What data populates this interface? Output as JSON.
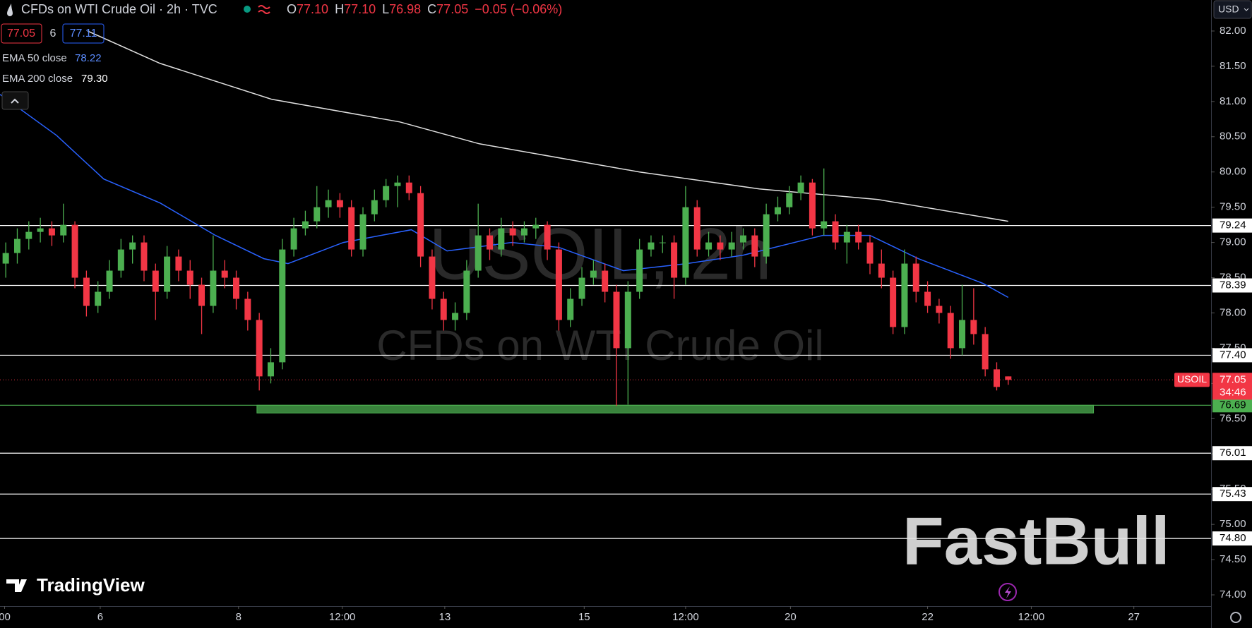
{
  "chart_data": {
    "type": "candlestick",
    "title": "CFDs on WTI Crude Oil · 2h · TVC",
    "ohlc_legend": [
      {
        "key": "O",
        "value": "77.10"
      },
      {
        "key": "H",
        "value": "77.10"
      },
      {
        "key": "L",
        "value": "76.98"
      },
      {
        "key": "C",
        "value": "77.05"
      }
    ],
    "change": "−0.05 (−0.06%)",
    "bid": "77.05",
    "spread": "6",
    "ask": "77.11",
    "currency": "USD",
    "watermark": [
      "USOIL, 2h",
      "CFDs on WTI Crude Oil"
    ],
    "brand": "FastBull",
    "platform": "TradingView",
    "up_color": "#4caf50",
    "down_color": "#f23645",
    "xlim": [
      -0.5,
      104.6
    ],
    "ylim": [
      73.84,
      82.44
    ],
    "xticks": [
      {
        "value": -0.1,
        "label": "00"
      },
      {
        "value": 8.2,
        "label": "6"
      },
      {
        "value": 20.2,
        "label": "8"
      },
      {
        "value": 29.2,
        "label": "12:00"
      },
      {
        "value": 38.1,
        "label": "13"
      },
      {
        "value": 50.2,
        "label": "15"
      },
      {
        "value": 59.0,
        "label": "12:00"
      },
      {
        "value": 68.1,
        "label": "20"
      },
      {
        "value": 80.0,
        "label": "22"
      },
      {
        "value": 89.0,
        "label": "12:00"
      },
      {
        "value": 97.9,
        "label": "27"
      }
    ],
    "yticks": [
      {
        "value": 82,
        "label": "82.00"
      },
      {
        "value": 81.5,
        "label": "81.50"
      },
      {
        "value": 81,
        "label": "81.00"
      },
      {
        "value": 80.5,
        "label": "80.50"
      },
      {
        "value": 80,
        "label": "80.00"
      },
      {
        "value": 79.5,
        "label": "79.50"
      },
      {
        "value": 79,
        "label": "79.00"
      },
      {
        "value": 78.5,
        "label": "78.50"
      },
      {
        "value": 78,
        "label": "78.00"
      },
      {
        "value": 77.5,
        "label": "77.50"
      },
      {
        "value": 77,
        "label": "77.00"
      },
      {
        "value": 76.5,
        "label": "76.50"
      },
      {
        "value": 76,
        "label": "76.00"
      },
      {
        "value": 75.5,
        "label": "75.50"
      },
      {
        "value": 75,
        "label": "75.00"
      },
      {
        "value": 74.5,
        "label": "74.50"
      },
      {
        "value": 74,
        "label": "74.00"
      }
    ],
    "levels": [
      {
        "value": 79.24,
        "label": "79.24",
        "color": "#ffffff"
      },
      {
        "value": 78.39,
        "label": "78.39",
        "color": "#ffffff"
      },
      {
        "value": 77.4,
        "label": "77.40",
        "color": "#ffffff"
      },
      {
        "value": 76.69,
        "label": "76.69",
        "color": "#4caf50"
      },
      {
        "value": 76.01,
        "label": "76.01",
        "color": "#ffffff"
      },
      {
        "value": 75.43,
        "label": "75.43",
        "color": "#ffffff"
      },
      {
        "value": 74.8,
        "label": "74.80",
        "color": "#ffffff"
      }
    ],
    "support_zone": {
      "xlim": [
        21.8,
        94.4
      ],
      "ylim": [
        76.58,
        76.69
      ],
      "color": "#4caf50"
    },
    "last_price": {
      "name": "USOIL",
      "value": 77.05,
      "label": "77.05",
      "countdown": "34:46",
      "color": "#f23645"
    },
    "candles": {
      "open": [
        78.7,
        78.85,
        79.05,
        79.15,
        79.2,
        79.1,
        79.25,
        78.5,
        78.1,
        78.3,
        78.6,
        78.9,
        79.0,
        78.6,
        78.3,
        78.8,
        78.6,
        78.4,
        78.1,
        78.6,
        78.5,
        78.2,
        77.9,
        77.1,
        77.3,
        78.9,
        79.2,
        79.3,
        79.5,
        79.6,
        79.5,
        78.9,
        79.4,
        79.6,
        79.8,
        79.85,
        79.7,
        78.8,
        78.2,
        77.9,
        78.0,
        78.6,
        79.1,
        78.9,
        79.2,
        79.1,
        79.2,
        79.25,
        78.9,
        77.9,
        78.2,
        78.5,
        78.6,
        78.3,
        77.5,
        78.3,
        78.9,
        79.0,
        79.0,
        78.5,
        79.5,
        78.9,
        79.0,
        78.9,
        79.0,
        79.1,
        78.8,
        79.4,
        79.5,
        79.7,
        79.85,
        79.2,
        79.3,
        79.0,
        79.15,
        79.0,
        78.7,
        78.5,
        77.8,
        78.7,
        78.3,
        78.1,
        78.0,
        77.5,
        77.9,
        77.7,
        77.2,
        77.1
      ],
      "high": [
        79.0,
        79.2,
        79.3,
        79.35,
        79.3,
        79.55,
        79.3,
        78.6,
        78.45,
        78.75,
        79.05,
        79.1,
        79.1,
        78.7,
        78.95,
        78.9,
        78.75,
        78.5,
        79.1,
        78.75,
        78.6,
        78.3,
        78.0,
        77.5,
        79.05,
        79.35,
        79.45,
        79.8,
        79.75,
        79.7,
        79.6,
        79.5,
        79.75,
        79.9,
        79.95,
        79.95,
        79.8,
        78.9,
        78.3,
        78.15,
        78.75,
        79.55,
        79.2,
        79.35,
        79.3,
        79.3,
        79.35,
        79.3,
        79.0,
        78.35,
        78.65,
        78.75,
        78.7,
        78.4,
        78.45,
        79.05,
        79.1,
        79.1,
        79.1,
        79.8,
        79.6,
        79.15,
        79.1,
        79.15,
        79.2,
        79.2,
        79.55,
        79.65,
        79.8,
        79.95,
        79.9,
        80.05,
        79.4,
        79.25,
        79.25,
        79.1,
        78.9,
        78.6,
        78.9,
        78.8,
        78.45,
        78.2,
        78.1,
        78.4,
        78.35,
        77.8,
        77.3,
        77.1
      ],
      "low": [
        78.5,
        78.7,
        78.9,
        79.0,
        78.95,
        79.0,
        78.35,
        77.95,
        78.0,
        78.2,
        78.5,
        78.7,
        78.45,
        77.9,
        78.2,
        78.45,
        78.2,
        77.7,
        78.0,
        78.35,
        78.05,
        77.75,
        76.9,
        77.0,
        77.2,
        78.8,
        79.1,
        79.2,
        79.35,
        79.35,
        78.8,
        78.8,
        79.3,
        79.5,
        79.5,
        79.6,
        78.65,
        78.05,
        77.75,
        77.75,
        77.9,
        78.5,
        78.75,
        78.8,
        78.95,
        79.0,
        79.05,
        78.75,
        77.75,
        77.8,
        78.1,
        78.4,
        78.15,
        76.68,
        76.7,
        78.2,
        78.8,
        78.85,
        78.2,
        78.4,
        78.8,
        78.8,
        78.75,
        78.8,
        78.9,
        78.65,
        78.7,
        79.3,
        79.4,
        79.6,
        79.1,
        79.1,
        78.9,
        78.7,
        78.9,
        78.55,
        78.35,
        77.7,
        77.7,
        78.15,
        78.0,
        77.85,
        77.35,
        77.4,
        77.55,
        77.1,
        76.9,
        76.98
      ],
      "close": [
        78.85,
        79.05,
        79.15,
        79.2,
        79.1,
        79.25,
        78.5,
        78.1,
        78.3,
        78.6,
        78.9,
        79.0,
        78.6,
        78.3,
        78.8,
        78.6,
        78.4,
        78.1,
        78.6,
        78.5,
        78.2,
        77.9,
        77.1,
        77.3,
        78.9,
        79.2,
        79.3,
        79.5,
        79.6,
        79.5,
        78.9,
        79.4,
        79.6,
        79.8,
        79.85,
        79.7,
        78.8,
        78.2,
        77.9,
        78.0,
        78.6,
        79.1,
        78.9,
        79.2,
        79.1,
        79.2,
        79.25,
        78.9,
        77.9,
        78.2,
        78.5,
        78.6,
        78.3,
        77.5,
        78.3,
        78.9,
        79.0,
        79.0,
        78.5,
        79.5,
        78.9,
        79.0,
        78.9,
        79.0,
        79.1,
        78.8,
        79.4,
        79.5,
        79.7,
        79.85,
        79.2,
        79.3,
        79.0,
        79.15,
        79.0,
        78.7,
        78.5,
        77.8,
        78.7,
        78.3,
        78.1,
        78.0,
        77.5,
        77.9,
        77.7,
        77.2,
        76.95,
        77.05
      ]
    },
    "series": [
      {
        "name": "EMA 50 close",
        "last_label": "78.22",
        "color": "#2962ff",
        "x": [
          -0.5,
          4.4,
          8.5,
          13.4,
          18.2,
          22.4,
          24.5,
          29.3,
          35.2,
          38.3,
          43.9,
          48,
          53.6,
          59.1,
          64,
          70.9,
          75,
          79.2,
          84.8,
          87
        ],
        "values": [
          81.1,
          80.52,
          79.9,
          79.56,
          79.1,
          78.77,
          78.7,
          79.0,
          79.18,
          78.88,
          79.0,
          78.93,
          78.6,
          78.7,
          78.82,
          79.1,
          79.1,
          78.77,
          78.42,
          78.22
        ]
      },
      {
        "name": "EMA 200 close",
        "last_label": "79.30",
        "color": "#e0e0e0",
        "x": [
          7.1,
          13.4,
          23.1,
          34.2,
          41.1,
          55,
          65.4,
          75.7,
          87
        ],
        "values": [
          82.0,
          81.54,
          81.03,
          80.71,
          80.4,
          80.0,
          79.76,
          79.61,
          79.3
        ]
      }
    ]
  }
}
